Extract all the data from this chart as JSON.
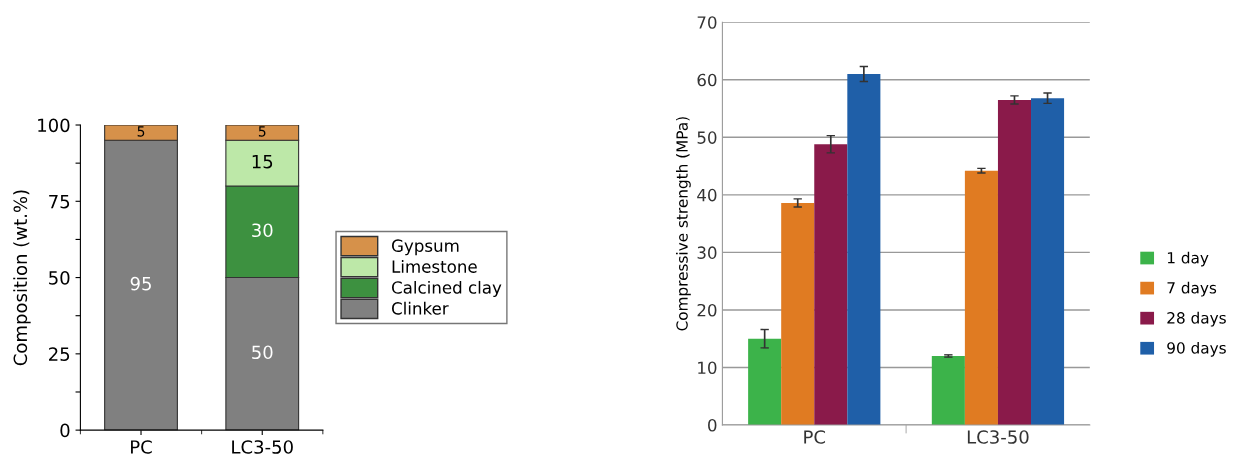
{
  "chart_data": [
    {
      "type": "bar",
      "stacked": true,
      "categories": [
        "PC",
        "LC3-50"
      ],
      "ylabel": "Composition (wt.%)",
      "ylim": [
        0,
        100
      ],
      "yticks": [
        0,
        {
          "value": 12.5,
          "label": null
        },
        25,
        {
          "value": 37.5,
          "label": null
        },
        50,
        {
          "value": 62.5,
          "label": null
        },
        75,
        {
          "value": 87.5,
          "label": null
        },
        100
      ],
      "series": [
        {
          "name": "Clinker",
          "color": "#808080",
          "values": [
            95,
            50
          ]
        },
        {
          "name": "Calcined clay",
          "color": "#3d9140",
          "values": [
            null,
            30
          ]
        },
        {
          "name": "Limestone",
          "color": "#bde8a8",
          "values": [
            null,
            15
          ]
        },
        {
          "name": "Gypsum",
          "color": "#d6914a",
          "values": [
            5,
            5
          ]
        }
      ],
      "data_labels": true,
      "legend": "right",
      "grid": false
    },
    {
      "type": "bar",
      "categories": [
        "PC",
        "LC3-50"
      ],
      "ylabel": "Compressive strength (MPa)",
      "ylim": [
        0,
        70
      ],
      "yticks": [
        0,
        10,
        20,
        30,
        40,
        50,
        60,
        70
      ],
      "series": [
        {
          "name": "1 day",
          "color": "#3cb34a",
          "values": [
            15,
            12
          ],
          "errors": [
            1.6,
            0.2
          ]
        },
        {
          "name": "7 days",
          "color": "#e07b22",
          "values": [
            38.6,
            44.2
          ],
          "errors": [
            0.7,
            0.4
          ]
        },
        {
          "name": "28 days",
          "color": "#8a1a4a",
          "values": [
            48.8,
            56.5
          ],
          "errors": [
            1.5,
            0.7
          ]
        },
        {
          "name": "90 days",
          "color": "#1f5fa8",
          "values": [
            61,
            56.8
          ],
          "errors": [
            1.3,
            0.9
          ]
        }
      ],
      "legend": "right",
      "grid": "y"
    }
  ]
}
